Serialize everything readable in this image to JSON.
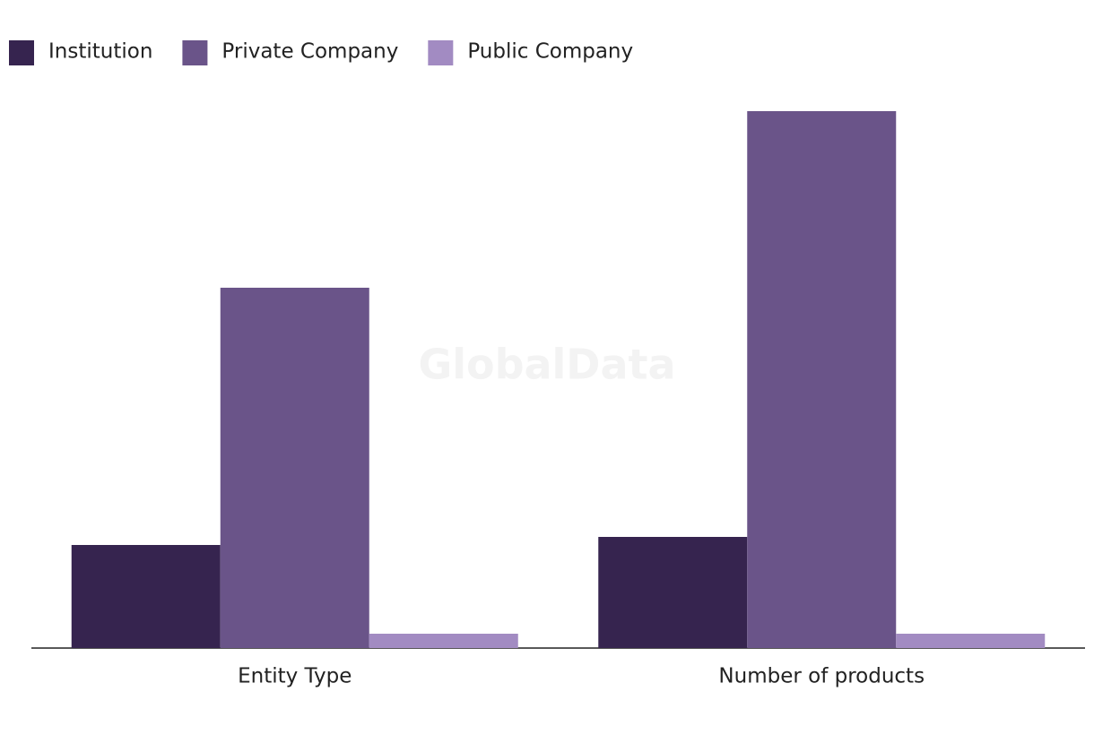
{
  "chart_data": {
    "type": "bar",
    "watermark": "GlobalData",
    "categories": [
      "Entity Type",
      "Number of products"
    ],
    "series": [
      {
        "name": "Institution",
        "color": "#36244f",
        "values": [
          115,
          124
        ]
      },
      {
        "name": "Private Company",
        "color": "#6a5489",
        "values": [
          402,
          599
        ]
      },
      {
        "name": "Public Company",
        "color": "#a28bc2",
        "values": [
          16,
          16
        ]
      }
    ],
    "legend": "top-left"
  }
}
